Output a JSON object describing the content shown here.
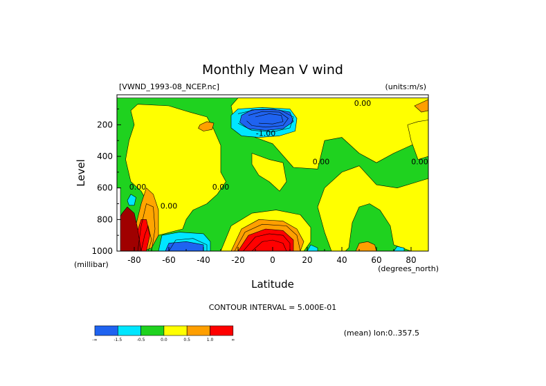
{
  "chart_data": {
    "type": "heatmap",
    "title": "Monthly Mean V wind",
    "dataset_label": "[VWND_1993-08_NCEP.nc]",
    "units_label": "(units:m/s)",
    "xlabel": "Latitude",
    "x_units": "(degrees_north)",
    "ylabel": "Level",
    "y_units": "(millibar)",
    "xlim": [
      -90,
      90
    ],
    "ylim": [
      1000,
      10
    ],
    "x_ticks": [
      -80,
      -60,
      -40,
      -20,
      0,
      20,
      40,
      60,
      80
    ],
    "y_ticks": [
      200,
      400,
      600,
      800,
      1000
    ],
    "contour_interval_label": "CONTOUR INTERVAL = 5.000E-01",
    "footer_label": "(mean) lon:0..357.5",
    "contour_labels": [
      {
        "text": "0.00",
        "lat": 52,
        "level": 80
      },
      {
        "text": "-1.00",
        "lat": -4,
        "level": 270
      },
      {
        "text": "0.00",
        "lat": 28,
        "level": 450
      },
      {
        "text": "0.00",
        "lat": 85,
        "level": 450
      },
      {
        "text": "0.00",
        "lat": -30,
        "level": 610
      },
      {
        "text": "0.00",
        "lat": -78,
        "level": 610
      },
      {
        "text": "0.00",
        "lat": -60,
        "level": 730
      }
    ],
    "colorbar": {
      "colors": [
        "#1f63f0",
        "#00e6ff",
        "#1fd21f",
        "#ffff00",
        "#ff9f00",
        "#ff0000"
      ],
      "tick_labels": [
        "-∞",
        "-1.5",
        "-0.5",
        "0.0",
        "0.5",
        "1.0",
        "∞"
      ]
    },
    "regions": [
      {
        "name": "green-base",
        "color": "#1fd21f",
        "points": [
          [
            -90,
            30
          ],
          [
            90,
            30
          ],
          [
            90,
            1000
          ],
          [
            -90,
            1000
          ]
        ]
      },
      {
        "name": "yellow-south",
        "color": "#ffff00",
        "points": [
          [
            -78,
            70
          ],
          [
            -60,
            80
          ],
          [
            -48,
            120
          ],
          [
            -38,
            150
          ],
          [
            -34,
            230
          ],
          [
            -30,
            330
          ],
          [
            -30,
            500
          ],
          [
            -27,
            560
          ],
          [
            -32,
            640
          ],
          [
            -38,
            700
          ],
          [
            -46,
            740
          ],
          [
            -50,
            800
          ],
          [
            -52,
            860
          ],
          [
            -66,
            900
          ],
          [
            -68,
            800
          ],
          [
            -72,
            700
          ],
          [
            -76,
            620
          ],
          [
            -82,
            560
          ],
          [
            -85,
            420
          ],
          [
            -83,
            300
          ],
          [
            -80,
            200
          ],
          [
            -82,
            110
          ]
        ]
      },
      {
        "name": "yellow-north-upper",
        "color": "#ffff00",
        "points": [
          [
            -20,
            30
          ],
          [
            90,
            30
          ],
          [
            90,
            300
          ],
          [
            80,
            330
          ],
          [
            70,
            380
          ],
          [
            60,
            440
          ],
          [
            50,
            380
          ],
          [
            40,
            280
          ],
          [
            30,
            300
          ],
          [
            26,
            480
          ],
          [
            12,
            470
          ],
          [
            0,
            320
          ],
          [
            -10,
            280
          ],
          [
            -22,
            200
          ],
          [
            -24,
            80
          ]
        ]
      },
      {
        "name": "yellow-sub-lowest",
        "color": "#ffff00",
        "points": [
          [
            -12,
            380
          ],
          [
            -2,
            420
          ],
          [
            6,
            440
          ],
          [
            8,
            560
          ],
          [
            4,
            620
          ],
          [
            -2,
            560
          ],
          [
            -8,
            520
          ],
          [
            -12,
            450
          ]
        ]
      },
      {
        "name": "yellow-trop-base",
        "color": "#ffff00",
        "points": [
          [
            -30,
            1000
          ],
          [
            -24,
            840
          ],
          [
            -12,
            760
          ],
          [
            2,
            740
          ],
          [
            16,
            770
          ],
          [
            22,
            850
          ],
          [
            22,
            940
          ],
          [
            18,
            1000
          ]
        ]
      },
      {
        "name": "yellow-north-lower",
        "color": "#ffff00",
        "points": [
          [
            30,
            600
          ],
          [
            40,
            500
          ],
          [
            50,
            460
          ],
          [
            55,
            520
          ],
          [
            60,
            580
          ],
          [
            72,
            600
          ],
          [
            84,
            560
          ],
          [
            90,
            540
          ],
          [
            90,
            1000
          ],
          [
            80,
            1000
          ],
          [
            70,
            960
          ],
          [
            68,
            840
          ],
          [
            62,
            740
          ],
          [
            56,
            700
          ],
          [
            50,
            720
          ],
          [
            46,
            820
          ],
          [
            44,
            980
          ],
          [
            42,
            1000
          ],
          [
            34,
            1000
          ],
          [
            30,
            880
          ],
          [
            26,
            720
          ]
        ]
      },
      {
        "name": "yellow-far-north",
        "color": "#ffff00",
        "points": [
          [
            78,
            200
          ],
          [
            84,
            180
          ],
          [
            90,
            170
          ],
          [
            90,
            400
          ],
          [
            84,
            420
          ],
          [
            80,
            300
          ]
        ]
      },
      {
        "name": "orange-upper",
        "color": "#ff9f00",
        "points": [
          [
            -42,
            200
          ],
          [
            -38,
            180
          ],
          [
            -34,
            190
          ],
          [
            -35,
            230
          ],
          [
            -40,
            240
          ],
          [
            -43,
            222
          ]
        ]
      },
      {
        "name": "orange-south",
        "color": "#ffa500",
        "points": [
          [
            -80,
            880
          ],
          [
            -76,
            700
          ],
          [
            -73,
            600
          ],
          [
            -69,
            640
          ],
          [
            -66,
            740
          ],
          [
            -66,
            900
          ],
          [
            -70,
            980
          ],
          [
            -75,
            1000
          ],
          [
            -80,
            1000
          ]
        ]
      },
      {
        "name": "orange-trop",
        "color": "#ff9f00",
        "points": [
          [
            -24,
            1000
          ],
          [
            -18,
            860
          ],
          [
            -8,
            800
          ],
          [
            6,
            810
          ],
          [
            14,
            860
          ],
          [
            18,
            940
          ],
          [
            16,
            1000
          ]
        ]
      },
      {
        "name": "orange-north",
        "color": "#ff9f00",
        "points": [
          [
            48,
            1000
          ],
          [
            50,
            950
          ],
          [
            55,
            940
          ],
          [
            59,
            960
          ],
          [
            60,
            1000
          ]
        ]
      },
      {
        "name": "orange-far-north",
        "color": "#ff9f00",
        "points": [
          [
            82,
            80
          ],
          [
            88,
            50
          ],
          [
            90,
            40
          ],
          [
            90,
            110
          ],
          [
            86,
            120
          ]
        ]
      },
      {
        "name": "red-trop",
        "color": "#ff0000",
        "points": [
          [
            -20,
            1000
          ],
          [
            -14,
            900
          ],
          [
            -4,
            860
          ],
          [
            6,
            870
          ],
          [
            12,
            930
          ],
          [
            12,
            1000
          ]
        ]
      },
      {
        "name": "red-south",
        "color": "#ff0000",
        "points": [
          [
            -80,
            940
          ],
          [
            -76,
            800
          ],
          [
            -73,
            800
          ],
          [
            -71,
            900
          ],
          [
            -73,
            1000
          ],
          [
            -80,
            1000
          ]
        ]
      },
      {
        "name": "dark-red-south",
        "color": "#a00000",
        "points": [
          [
            -90,
            1000
          ],
          [
            -90,
            820
          ],
          [
            -87,
            760
          ],
          [
            -84,
            720
          ],
          [
            -80,
            760
          ],
          [
            -78,
            860
          ],
          [
            -76,
            1000
          ]
        ]
      },
      {
        "name": "blue-jet",
        "color": "#00e6ff",
        "points": [
          [
            -24,
            140
          ],
          [
            -20,
            100
          ],
          [
            -6,
            90
          ],
          [
            10,
            100
          ],
          [
            14,
            160
          ],
          [
            13,
            240
          ],
          [
            4,
            270
          ],
          [
            -8,
            280
          ],
          [
            -18,
            270
          ],
          [
            -24,
            220
          ]
        ]
      },
      {
        "name": "blue-jet-core",
        "color": "#1f63f0",
        "points": [
          [
            -18,
            140
          ],
          [
            -12,
            105
          ],
          [
            0,
            100
          ],
          [
            10,
            120
          ],
          [
            12,
            180
          ],
          [
            6,
            225
          ],
          [
            -4,
            235
          ],
          [
            -14,
            225
          ],
          [
            -19,
            185
          ]
        ]
      },
      {
        "name": "cyan-south-low",
        "color": "#00e6ff",
        "points": [
          [
            -66,
            1000
          ],
          [
            -64,
            900
          ],
          [
            -54,
            880
          ],
          [
            -40,
            890
          ],
          [
            -36,
            940
          ],
          [
            -36,
            1000
          ]
        ]
      },
      {
        "name": "blue-south-low",
        "color": "#1f63f0",
        "points": [
          [
            -62,
            1000
          ],
          [
            -60,
            950
          ],
          [
            -50,
            940
          ],
          [
            -40,
            960
          ],
          [
            -40,
            1000
          ]
        ]
      },
      {
        "name": "cyan-south-edge",
        "color": "#00e6ff",
        "points": [
          [
            -84,
            680
          ],
          [
            -82,
            640
          ],
          [
            -79,
            660
          ],
          [
            -80,
            710
          ],
          [
            -83,
            710
          ]
        ]
      },
      {
        "name": "cyan-north-low",
        "color": "#00e6ff",
        "points": [
          [
            20,
            1000
          ],
          [
            22,
            960
          ],
          [
            26,
            980
          ],
          [
            26,
            1000
          ]
        ]
      },
      {
        "name": "cyan-far-north",
        "color": "#00e6ff",
        "points": [
          [
            70,
            1000
          ],
          [
            72,
            970
          ],
          [
            76,
            980
          ],
          [
            76,
            1000
          ]
        ]
      },
      {
        "name": "white-missing",
        "color": "#ffffff",
        "points": [
          [
            -90,
            600
          ],
          [
            -88,
            600
          ],
          [
            -88,
            1000
          ],
          [
            -90,
            1000
          ]
        ]
      }
    ],
    "lines": [
      {
        "name": "jet-contour-1",
        "points": [
          [
            -20,
            130
          ],
          [
            -10,
            104
          ],
          [
            4,
            106
          ],
          [
            12,
            150
          ],
          [
            10,
            220
          ],
          [
            0,
            245
          ],
          [
            -12,
            235
          ],
          [
            -20,
            190
          ]
        ]
      },
      {
        "name": "jet-contour-2",
        "points": [
          [
            -14,
            140
          ],
          [
            -6,
            116
          ],
          [
            4,
            120
          ],
          [
            9,
            160
          ],
          [
            6,
            205
          ],
          [
            -4,
            215
          ],
          [
            -12,
            205
          ],
          [
            -15,
            175
          ]
        ]
      },
      {
        "name": "jet-contour-3",
        "points": [
          [
            -10,
            150
          ],
          [
            -2,
            130
          ],
          [
            5,
            140
          ],
          [
            6,
            180
          ],
          [
            0,
            195
          ],
          [
            -8,
            190
          ]
        ]
      },
      {
        "name": "trop-contour-1",
        "points": [
          [
            -22,
            1000
          ],
          [
            -16,
            880
          ],
          [
            -6,
            830
          ],
          [
            8,
            840
          ],
          [
            14,
            900
          ],
          [
            16,
            1000
          ]
        ]
      },
      {
        "name": "trop-contour-2",
        "points": [
          [
            -17,
            1000
          ],
          [
            -10,
            910
          ],
          [
            -2,
            890
          ],
          [
            6,
            900
          ],
          [
            10,
            950
          ],
          [
            10,
            1000
          ]
        ]
      },
      {
        "name": "trop-contour-3",
        "points": [
          [
            -12,
            1000
          ],
          [
            -6,
            940
          ],
          [
            0,
            930
          ],
          [
            6,
            950
          ],
          [
            8,
            1000
          ]
        ]
      },
      {
        "name": "south-contour-1",
        "points": [
          [
            -78,
            1000
          ],
          [
            -76,
            840
          ],
          [
            -73,
            700
          ],
          [
            -69,
            720
          ],
          [
            -68,
            860
          ],
          [
            -70,
            1000
          ]
        ]
      },
      {
        "name": "south-contour-2",
        "points": [
          [
            -76,
            1000
          ],
          [
            -74,
            900
          ],
          [
            -72,
            840
          ],
          [
            -70,
            930
          ],
          [
            -72,
            1000
          ]
        ]
      },
      {
        "name": "south-low-contour",
        "points": [
          [
            -60,
            1000
          ],
          [
            -56,
            930
          ],
          [
            -46,
            920
          ],
          [
            -38,
            960
          ],
          [
            -38,
            1000
          ]
        ]
      }
    ]
  }
}
